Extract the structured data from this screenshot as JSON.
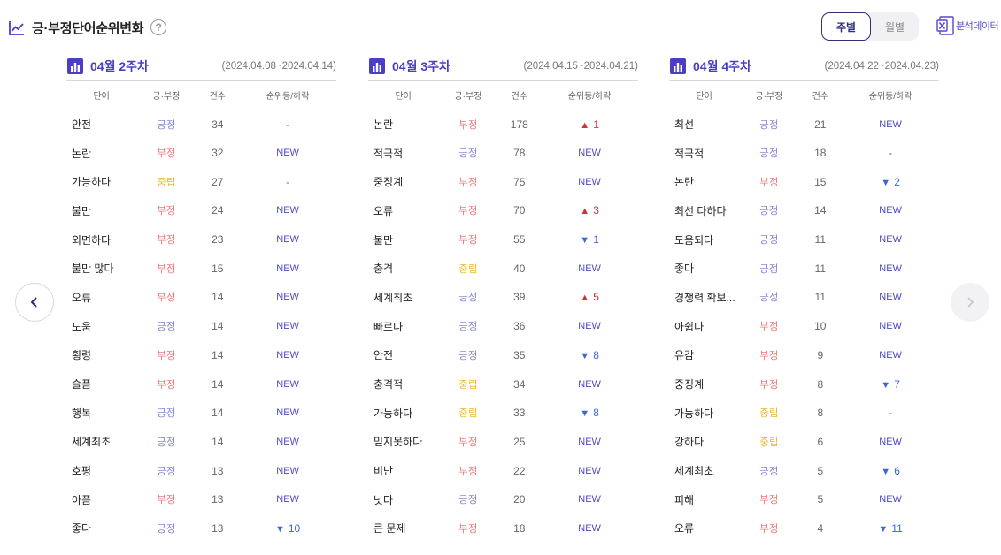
{
  "header": {
    "title": "긍·부정단어순위변화",
    "help": "?"
  },
  "period_toggle": {
    "weekly": "주별",
    "monthly": "월별",
    "selected": "weekly"
  },
  "export": {
    "label": "분석데이터"
  },
  "colors": {
    "accent": "#4a3fc4",
    "positive": "#8a8ad6",
    "negative": "#ec7e7e",
    "neutral": "#eab92f",
    "up": "#cc3333",
    "down": "#3b66d6"
  },
  "columns": {
    "word": "단어",
    "sentiment": "긍·부정",
    "count": "건수",
    "rank": "순위등/하락"
  },
  "panels": [
    {
      "week": "04월 2주차",
      "range": "(2024.04.08~2024.04.14)",
      "rows": [
        {
          "word": "안전",
          "sentiment": "긍정",
          "cls": "pos",
          "count": "34",
          "rank": "-",
          "type": "same"
        },
        {
          "word": "논란",
          "sentiment": "부정",
          "cls": "neg",
          "count": "32",
          "rank": "NEW",
          "type": "new"
        },
        {
          "word": "가능하다",
          "sentiment": "중립",
          "cls": "neu",
          "count": "27",
          "rank": "-",
          "type": "same"
        },
        {
          "word": "불만",
          "sentiment": "부정",
          "cls": "neg",
          "count": "24",
          "rank": "NEW",
          "type": "new"
        },
        {
          "word": "외면하다",
          "sentiment": "부정",
          "cls": "neg",
          "count": "23",
          "rank": "NEW",
          "type": "new"
        },
        {
          "word": "불만 많다",
          "sentiment": "부정",
          "cls": "neg",
          "count": "15",
          "rank": "NEW",
          "type": "new"
        },
        {
          "word": "오류",
          "sentiment": "부정",
          "cls": "neg",
          "count": "14",
          "rank": "NEW",
          "type": "new"
        },
        {
          "word": "도움",
          "sentiment": "긍정",
          "cls": "pos",
          "count": "14",
          "rank": "NEW",
          "type": "new"
        },
        {
          "word": "횡령",
          "sentiment": "부정",
          "cls": "neg",
          "count": "14",
          "rank": "NEW",
          "type": "new"
        },
        {
          "word": "슬픔",
          "sentiment": "부정",
          "cls": "neg",
          "count": "14",
          "rank": "NEW",
          "type": "new"
        },
        {
          "word": "행복",
          "sentiment": "긍정",
          "cls": "pos",
          "count": "14",
          "rank": "NEW",
          "type": "new"
        },
        {
          "word": "세계최초",
          "sentiment": "긍정",
          "cls": "pos",
          "count": "14",
          "rank": "NEW",
          "type": "new"
        },
        {
          "word": "호평",
          "sentiment": "긍정",
          "cls": "pos",
          "count": "13",
          "rank": "NEW",
          "type": "new"
        },
        {
          "word": "아픔",
          "sentiment": "부정",
          "cls": "neg",
          "count": "13",
          "rank": "NEW",
          "type": "new"
        },
        {
          "word": "좋다",
          "sentiment": "긍정",
          "cls": "pos",
          "count": "13",
          "rank": "10",
          "type": "down"
        }
      ]
    },
    {
      "week": "04월 3주차",
      "range": "(2024.04.15~2024.04.21)",
      "rows": [
        {
          "word": "논란",
          "sentiment": "부정",
          "cls": "neg",
          "count": "178",
          "rank": "1",
          "type": "up"
        },
        {
          "word": "적극적",
          "sentiment": "긍정",
          "cls": "pos",
          "count": "78",
          "rank": "NEW",
          "type": "new"
        },
        {
          "word": "중징계",
          "sentiment": "부정",
          "cls": "neg",
          "count": "75",
          "rank": "NEW",
          "type": "new"
        },
        {
          "word": "오류",
          "sentiment": "부정",
          "cls": "neg",
          "count": "70",
          "rank": "3",
          "type": "up"
        },
        {
          "word": "불만",
          "sentiment": "부정",
          "cls": "neg",
          "count": "55",
          "rank": "1",
          "type": "down"
        },
        {
          "word": "충격",
          "sentiment": "중립",
          "cls": "neu",
          "count": "40",
          "rank": "NEW",
          "type": "new"
        },
        {
          "word": "세계최초",
          "sentiment": "긍정",
          "cls": "pos",
          "count": "39",
          "rank": "5",
          "type": "up"
        },
        {
          "word": "빠르다",
          "sentiment": "긍정",
          "cls": "pos",
          "count": "36",
          "rank": "NEW",
          "type": "new"
        },
        {
          "word": "안전",
          "sentiment": "긍정",
          "cls": "pos",
          "count": "35",
          "rank": "8",
          "type": "down"
        },
        {
          "word": "충격적",
          "sentiment": "중립",
          "cls": "neu",
          "count": "34",
          "rank": "NEW",
          "type": "new"
        },
        {
          "word": "가능하다",
          "sentiment": "중립",
          "cls": "neu",
          "count": "33",
          "rank": "8",
          "type": "down"
        },
        {
          "word": "믿지못하다",
          "sentiment": "부정",
          "cls": "neg",
          "count": "25",
          "rank": "NEW",
          "type": "new"
        },
        {
          "word": "비난",
          "sentiment": "부정",
          "cls": "neg",
          "count": "22",
          "rank": "NEW",
          "type": "new"
        },
        {
          "word": "낫다",
          "sentiment": "긍정",
          "cls": "pos",
          "count": "20",
          "rank": "NEW",
          "type": "new"
        },
        {
          "word": "큰 문제",
          "sentiment": "부정",
          "cls": "neg",
          "count": "18",
          "rank": "NEW",
          "type": "new"
        }
      ]
    },
    {
      "week": "04월 4주차",
      "range": "(2024.04.22~2024.04.23)",
      "rows": [
        {
          "word": "최선",
          "sentiment": "긍정",
          "cls": "pos",
          "count": "21",
          "rank": "NEW",
          "type": "new"
        },
        {
          "word": "적극적",
          "sentiment": "긍정",
          "cls": "pos",
          "count": "18",
          "rank": "-",
          "type": "same"
        },
        {
          "word": "논란",
          "sentiment": "부정",
          "cls": "neg",
          "count": "15",
          "rank": "2",
          "type": "down"
        },
        {
          "word": "최선 다하다",
          "sentiment": "긍정",
          "cls": "pos",
          "count": "14",
          "rank": "NEW",
          "type": "new"
        },
        {
          "word": "도움되다",
          "sentiment": "긍정",
          "cls": "pos",
          "count": "11",
          "rank": "NEW",
          "type": "new"
        },
        {
          "word": "좋다",
          "sentiment": "긍정",
          "cls": "pos",
          "count": "11",
          "rank": "NEW",
          "type": "new"
        },
        {
          "word": "경쟁력 확보...",
          "sentiment": "긍정",
          "cls": "pos",
          "count": "11",
          "rank": "NEW",
          "type": "new"
        },
        {
          "word": "아쉽다",
          "sentiment": "부정",
          "cls": "neg",
          "count": "10",
          "rank": "NEW",
          "type": "new"
        },
        {
          "word": "유감",
          "sentiment": "부정",
          "cls": "neg",
          "count": "9",
          "rank": "NEW",
          "type": "new"
        },
        {
          "word": "중징계",
          "sentiment": "부정",
          "cls": "neg",
          "count": "8",
          "rank": "7",
          "type": "down"
        },
        {
          "word": "가능하다",
          "sentiment": "중립",
          "cls": "neu",
          "count": "8",
          "rank": "-",
          "type": "same"
        },
        {
          "word": "강하다",
          "sentiment": "중립",
          "cls": "neu",
          "count": "6",
          "rank": "NEW",
          "type": "new"
        },
        {
          "word": "세계최초",
          "sentiment": "긍정",
          "cls": "pos",
          "count": "5",
          "rank": "6",
          "type": "down"
        },
        {
          "word": "피해",
          "sentiment": "부정",
          "cls": "neg",
          "count": "5",
          "rank": "NEW",
          "type": "new"
        },
        {
          "word": "오류",
          "sentiment": "부정",
          "cls": "neg",
          "count": "4",
          "rank": "11",
          "type": "down"
        }
      ]
    }
  ]
}
